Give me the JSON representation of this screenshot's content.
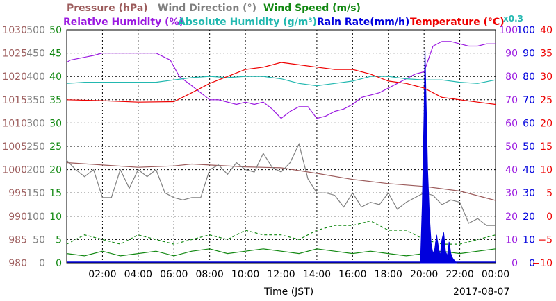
{
  "chart_data": {
    "type": "line",
    "title": "",
    "date_label": "2017-08-07",
    "xlabel": "Time (JST)",
    "x_ticks": [
      "02:00",
      "04:00",
      "06:00",
      "08:00",
      "10:00",
      "12:00",
      "14:00",
      "16:00",
      "18:00",
      "20:00",
      "22:00",
      "00:00"
    ],
    "xlim_hours": [
      0,
      24
    ],
    "grid": true,
    "legend_placement": "top",
    "multiplier_note": "x0.3",
    "legend": [
      {
        "label": "Pressure (hPa)",
        "color": "#9c5c5c"
      },
      {
        "label": "Wind Direction (°)",
        "color": "#808080"
      },
      {
        "label": "Wind Speed (m/s)",
        "color": "#118811"
      },
      {
        "label": "Relative Humidity (%)",
        "color": "#9a18e0"
      },
      {
        "label": "Absolute Humidity (g/m³)",
        "color": "#22b8b0"
      },
      {
        "label": "Rain Rate(mm/h)",
        "color": "#0000dd"
      },
      {
        "label": "Temperature (°C)",
        "color": "#ee0000"
      }
    ],
    "axes": [
      {
        "name": "Pressure (hPa)",
        "color": "#9c5c5c",
        "range": [
          980,
          1030
        ],
        "ticks": [
          "1030",
          "1025",
          "1020",
          "1015",
          "1010",
          "1005",
          "1000",
          "995",
          "990",
          "985",
          "980"
        ]
      },
      {
        "name": "Wind Direction (°)",
        "color": "#808080",
        "range": [
          0,
          500
        ],
        "ticks": [
          "500",
          "450",
          "400",
          "350",
          "300",
          "250",
          "200",
          "150",
          "100",
          "50",
          "0"
        ]
      },
      {
        "name": "Wind Speed (m/s)",
        "color": "#118811",
        "range": [
          0,
          50
        ],
        "ticks": [
          "50",
          "45",
          "40",
          "35",
          "30",
          "25",
          "20",
          "15",
          "10",
          "5",
          "0"
        ]
      },
      {
        "name": "Relative Humidity (%)",
        "color": "#9a18e0",
        "range": [
          0,
          100
        ],
        "ticks": [
          "100",
          "90",
          "80",
          "70",
          "60",
          "50",
          "40",
          "30",
          "20",
          "10",
          "0"
        ]
      },
      {
        "name": "Rain Rate(mm/h)",
        "color": "#0000dd",
        "range": [
          0,
          100
        ],
        "ticks": [
          "100",
          "90",
          "80",
          "70",
          "60",
          "50",
          "40",
          "30",
          "20",
          "10",
          "0"
        ]
      },
      {
        "name": "Temperature (°C)",
        "color": "#ee0000",
        "range": [
          -10,
          40
        ],
        "ticks": [
          "40",
          "35",
          "30",
          "25",
          "20",
          "15",
          "10",
          "5",
          "0",
          "−5",
          "−10"
        ]
      }
    ],
    "series": [
      {
        "name": "Pressure (hPa)",
        "axis": "Pressure (hPa)",
        "color": "#9c5c5c",
        "x": [
          0,
          2,
          4,
          6,
          7,
          8,
          10,
          12,
          14,
          16,
          18,
          20,
          22,
          24
        ],
        "y": [
          1001.5,
          1001.0,
          1000.5,
          1000.8,
          1001.2,
          1001.0,
          1000.6,
          1000.4,
          999.2,
          997.9,
          997.0,
          996.4,
          995.4,
          993.4
        ]
      },
      {
        "name": "Wind Direction (°)",
        "axis": "Wind Direction (°)",
        "color": "#808080",
        "x": [
          0,
          0.5,
          1,
          1.5,
          2,
          2.5,
          3,
          3.5,
          4,
          4.5,
          5,
          5.5,
          6,
          6.5,
          7,
          7.5,
          8,
          8.5,
          9,
          9.5,
          10,
          10.5,
          11,
          11.5,
          12,
          12.5,
          13,
          13.5,
          14,
          14.5,
          15,
          15.5,
          16,
          16.5,
          17,
          17.5,
          18,
          18.5,
          19,
          19.5,
          20,
          20.5,
          21,
          21.5,
          22,
          22.5,
          23,
          23.5,
          24
        ],
        "y": [
          220,
          200,
          185,
          200,
          140,
          140,
          200,
          160,
          200,
          185,
          200,
          150,
          140,
          135,
          140,
          140,
          200,
          210,
          190,
          215,
          200,
          195,
          235,
          205,
          195,
          215,
          255,
          180,
          150,
          150,
          145,
          120,
          150,
          120,
          130,
          125,
          150,
          115,
          130,
          140,
          150,
          145,
          125,
          135,
          130,
          85,
          95,
          80,
          80
        ]
      },
      {
        "name": "Wind Speed (m/s)",
        "axis": "Wind Speed (m/s)",
        "color": "#118811",
        "x": [
          0,
          1,
          2,
          3,
          4,
          5,
          6,
          7,
          8,
          9,
          10,
          11,
          12,
          13,
          14,
          15,
          16,
          17,
          18,
          19,
          20,
          21,
          22,
          23,
          24
        ],
        "y": [
          2.0,
          1.5,
          2.5,
          1.5,
          2.0,
          2.5,
          1.5,
          2.5,
          3.0,
          2.0,
          2.5,
          3.0,
          2.5,
          2.0,
          3.0,
          2.5,
          2.0,
          2.5,
          2.0,
          1.5,
          2.0,
          2.5,
          2.0,
          2.5,
          3.0
        ]
      },
      {
        "name": "Wind Speed (m/s) (gust)",
        "axis": "Wind Speed (m/s)",
        "color": "#118811",
        "dashed": true,
        "x": [
          0,
          1,
          2,
          3,
          4,
          5,
          6,
          7,
          8,
          9,
          10,
          11,
          12,
          13,
          14,
          15,
          16,
          17,
          18,
          19,
          20,
          21,
          22,
          23,
          24
        ],
        "y": [
          4,
          6,
          5,
          4,
          6,
          5,
          4,
          5,
          6,
          5,
          7,
          6,
          6,
          5,
          7,
          8,
          8,
          9,
          7,
          7,
          5,
          4,
          4,
          5,
          6
        ]
      },
      {
        "name": "Relative Humidity (%)",
        "axis": "Relative Humidity (%)",
        "color": "#9a18e0",
        "x": [
          0,
          0.2,
          1.5,
          2,
          3,
          4,
          5,
          5.8,
          6.3,
          7,
          7.5,
          8,
          8.5,
          9,
          9.5,
          10,
          10.5,
          11,
          11.5,
          12,
          12.5,
          13,
          13.5,
          14,
          14.5,
          15,
          15.5,
          16,
          16.5,
          17,
          17.5,
          18,
          18.5,
          19,
          19.5,
          20,
          20.5,
          21,
          21.5,
          22,
          22.5,
          23,
          23.5,
          24
        ],
        "y": [
          86,
          87,
          89,
          90,
          90,
          90,
          90,
          87,
          80,
          76,
          73,
          70,
          70,
          69,
          68,
          69,
          68,
          69,
          66,
          62,
          65,
          67,
          67,
          62,
          63,
          65,
          66,
          68,
          71,
          72,
          73,
          75,
          77,
          79,
          81,
          82,
          93,
          95,
          95,
          94,
          93,
          93,
          94,
          94
        ]
      },
      {
        "name": "Absolute Humidity (g/m³)",
        "axis": "Relative Humidity (%)",
        "color": "#22b8b0",
        "x": [
          0,
          1,
          2,
          3,
          4,
          5,
          6,
          7,
          8,
          9,
          10,
          11,
          12,
          13,
          14,
          15,
          16,
          17,
          18,
          19,
          20,
          21,
          22,
          23,
          24
        ],
        "y": [
          77,
          77.5,
          77.5,
          77.5,
          77.5,
          77.5,
          78.5,
          79.5,
          80,
          79.5,
          80,
          80,
          79,
          77,
          76,
          77,
          78,
          80,
          80,
          79,
          78.5,
          78.5,
          77.5,
          77,
          78.5
        ]
      },
      {
        "name": "Rain Rate(mm/h)",
        "axis": "Rain Rate(mm/h)",
        "color": "#0000dd",
        "x": [
          19.8,
          19.9,
          20.0,
          20.05,
          20.1,
          20.2,
          20.3,
          20.4,
          20.5,
          20.6,
          20.7,
          20.8,
          20.9,
          21.0,
          21.1,
          21.2,
          21.3,
          21.4,
          21.5,
          21.6,
          21.8
        ],
        "y": [
          0,
          25,
          65,
          92,
          75,
          40,
          20,
          8,
          4,
          6,
          12,
          7,
          3,
          10,
          13,
          5,
          3,
          9,
          4,
          2,
          0
        ]
      },
      {
        "name": "Temperature (°C)",
        "axis": "Temperature (°C)",
        "color": "#ee0000",
        "x": [
          0,
          2,
          4,
          6,
          7,
          8,
          9,
          10,
          11,
          12,
          13,
          14,
          15,
          16,
          17,
          18,
          19,
          20,
          20.5,
          21,
          22,
          23,
          24
        ],
        "y": [
          25,
          24.8,
          24.5,
          24.6,
          26.5,
          28.5,
          30,
          31.5,
          32,
          33,
          32.5,
          32,
          31.5,
          31.5,
          30.5,
          29,
          28.5,
          27.5,
          26.5,
          25.5,
          25,
          24.5,
          24
        ]
      }
    ]
  }
}
